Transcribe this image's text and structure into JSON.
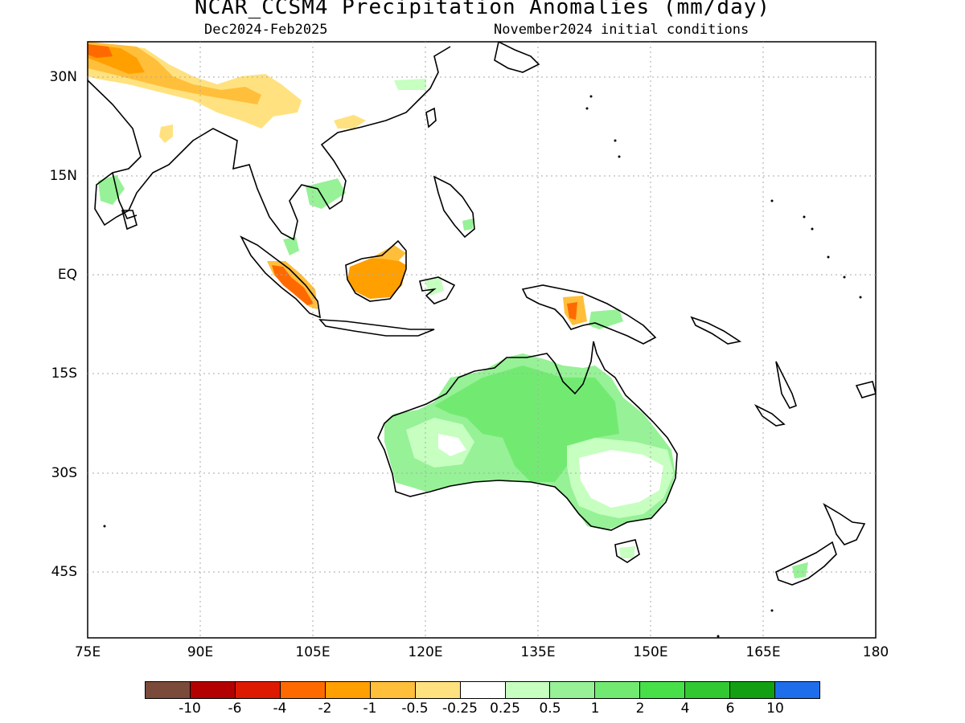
{
  "header": {
    "title": "NCAR_CCSM4 Precipitation Anomalies (mm/day)",
    "period": "Dec2024-Feb2025",
    "init": "November2024 initial conditions"
  },
  "map": {
    "lat_labels": [
      "30N",
      "15N",
      "EQ",
      "15S",
      "30S",
      "45S"
    ],
    "lon_labels": [
      "75E",
      "90E",
      "105E",
      "120E",
      "135E",
      "150E",
      "165E",
      "180"
    ],
    "extent": {
      "lon": [
        75,
        180
      ],
      "lat": [
        -55,
        35
      ]
    },
    "grid": true
  },
  "colorbar": {
    "labels": [
      "-10",
      "-6",
      "-4",
      "-2",
      "-1",
      "-0.5",
      "-0.25",
      "0.25",
      "0.5",
      "1",
      "2",
      "4",
      "6",
      "10"
    ],
    "colors": [
      "#7a4b3a",
      "#b30000",
      "#dd1a00",
      "#ff6a00",
      "#ff9f00",
      "#ffbf3b",
      "#ffe27f",
      "#ffffff",
      "#c6ffc0",
      "#97f197",
      "#72ea72",
      "#48e048",
      "#32c832",
      "#12a012",
      "#1e6eeb"
    ]
  },
  "anomaly_colors": {
    "dry_light": "#ffe27f",
    "dry_moderate": "#ffbf3b",
    "dry_strong": "#ff9f00",
    "dry_very_strong": "#ff6a00",
    "wet_light": "#c6ffc0",
    "wet_moderate": "#97f197",
    "wet_strong": "#72ea72"
  }
}
